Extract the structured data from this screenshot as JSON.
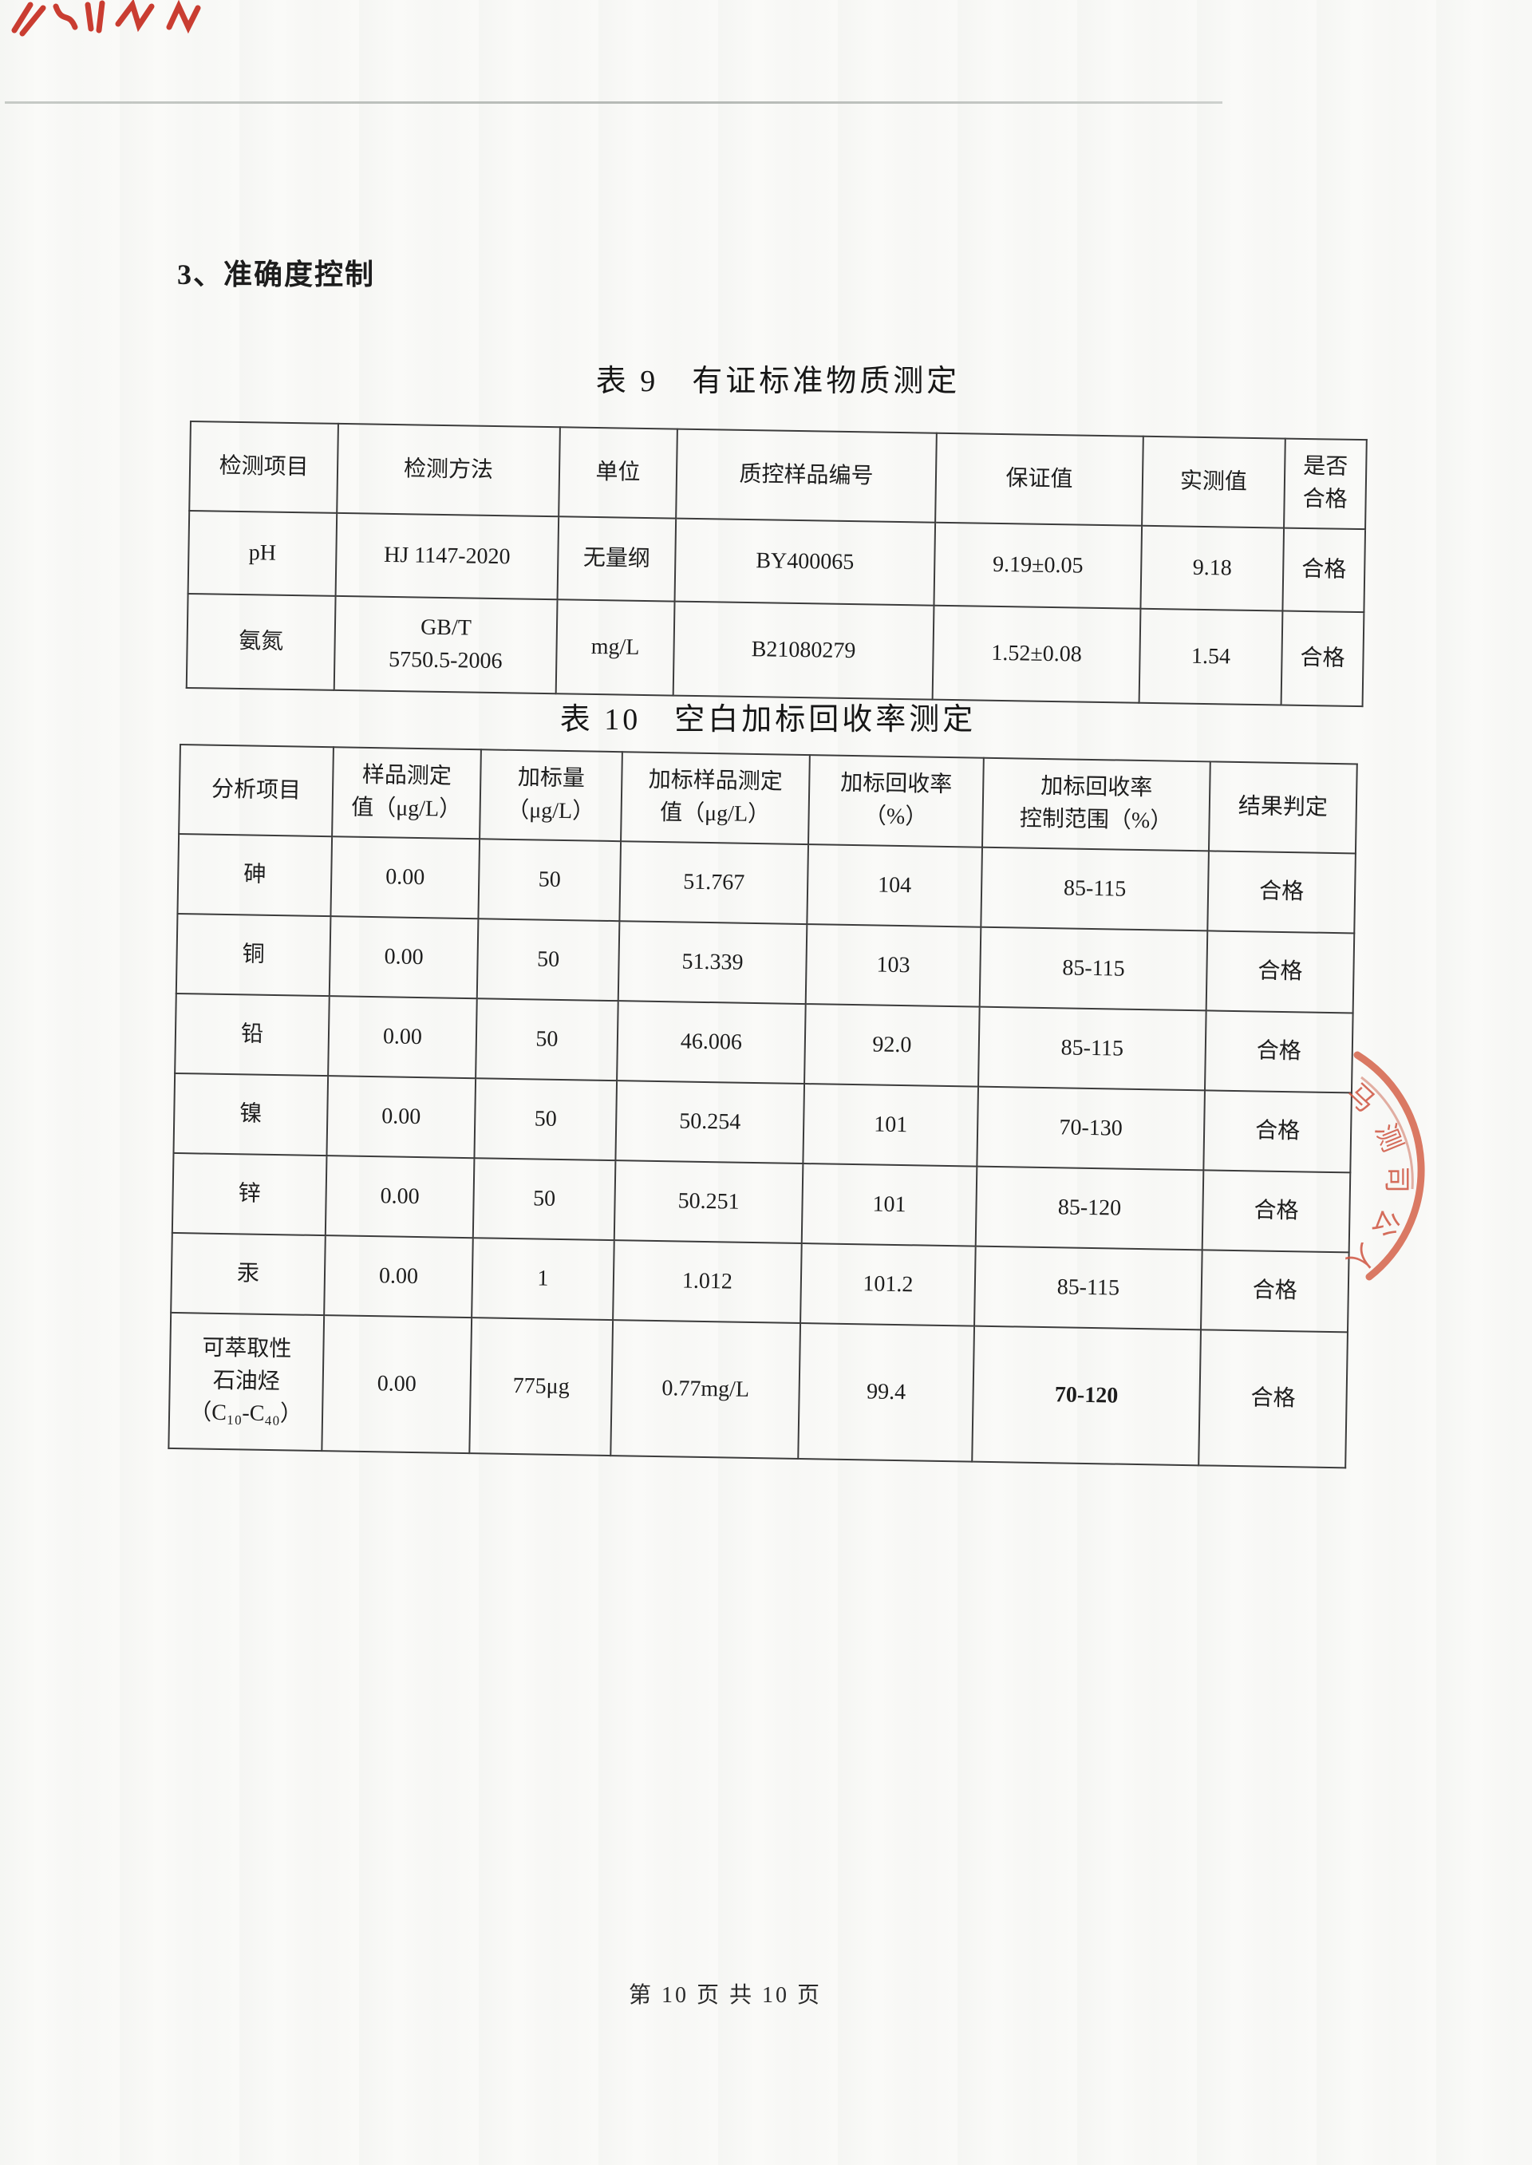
{
  "section": {
    "heading": "3、准确度控制"
  },
  "table9": {
    "title": "表 9　有证标准物质测定",
    "headers": [
      "检测项目",
      "检测方法",
      "单位",
      "质控样品编号",
      "保证值",
      "实测值",
      "是否\n合格"
    ],
    "rows": [
      [
        "pH",
        "HJ 1147-2020",
        "无量纲",
        "BY400065",
        "9.19±0.05",
        "9.18",
        "合格"
      ],
      [
        "氨氮",
        "GB/T\n5750.5-2006",
        "mg/L",
        "B21080279",
        "1.52±0.08",
        "1.54",
        "合格"
      ]
    ]
  },
  "table10": {
    "title": "表 10　空白加标回收率测定",
    "headers": [
      "分析项目",
      "样品测定\n值（μg/L）",
      "加标量\n（μg/L）",
      "加标样品测定\n值（μg/L）",
      "加标回收率\n（%）",
      "加标回收率\n控制范围（%）",
      "结果判定"
    ],
    "rows": [
      [
        "砷",
        "0.00",
        "50",
        "51.767",
        "104",
        "85-115",
        "合格"
      ],
      [
        "铜",
        "0.00",
        "50",
        "51.339",
        "103",
        "85-115",
        "合格"
      ],
      [
        "铅",
        "0.00",
        "50",
        "46.006",
        "92.0",
        "85-115",
        "合格"
      ],
      [
        "镍",
        "0.00",
        "50",
        "50.254",
        "101",
        "70-130",
        "合格"
      ],
      [
        "锌",
        "0.00",
        "50",
        "50.251",
        "101",
        "85-120",
        "合格"
      ],
      [
        "汞",
        "0.00",
        "1",
        "1.012",
        "101.2",
        "85-115",
        "合格"
      ],
      [
        "可萃取性\n石油烃\n（C₁₀-C₄₀）",
        "0.00",
        "775μg",
        "0.77mg/L",
        "99.4",
        "70-120",
        "合格"
      ]
    ]
  },
  "stamp": {
    "color": "#cf5440",
    "glyphs": [
      "马",
      "测",
      "司",
      "公",
      "人"
    ]
  },
  "footer": {
    "text": "第 10 页 共 10 页"
  }
}
